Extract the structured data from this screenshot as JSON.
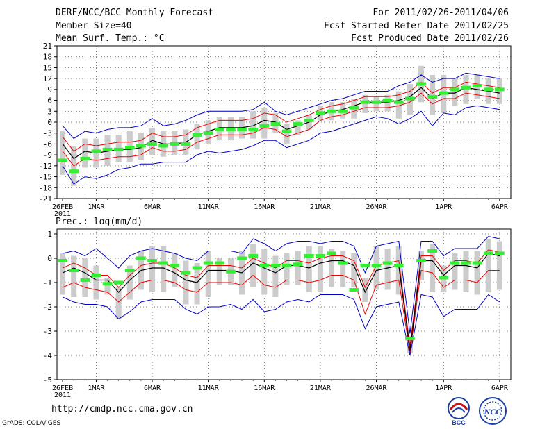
{
  "header": {
    "title": "DERF/NCC/BCC Monthly Forecast",
    "member_size": "Member Size=40",
    "variable_top": "Mean Surf. Temp.: °C",
    "period": "For 2011/02/26-2011/04/06",
    "started": "Fcst Started Refer Date 2011/02/25",
    "produced": "Fcst Produced Date 2011/02/26"
  },
  "footer": {
    "url": "http://cmdp.ncc.cma.gov.cn",
    "credit": "GrADS: COLA/IGES",
    "logo_left": "BCC",
    "logo_right": "NCC"
  },
  "colors": {
    "ensemble_bar": "#cccccc",
    "member_mark": "#33ee33",
    "mean_line": "#000000",
    "inner_line": "#ee0000",
    "outer_line": "#0000cc"
  },
  "chart_data": [
    {
      "type": "line",
      "title": "Mean Surf. Temp.: °C",
      "x_start": "26FEB 2011",
      "x": [
        1,
        2,
        3,
        4,
        5,
        6,
        7,
        8,
        9,
        10,
        11,
        12,
        13,
        14,
        15,
        16,
        17,
        18,
        19,
        20,
        21,
        22,
        23,
        24,
        25,
        26,
        27,
        28,
        29,
        30,
        31,
        32,
        33,
        34,
        35,
        36,
        37,
        38,
        39,
        40
      ],
      "x_tick_labels": [
        {
          "day": 1,
          "label": "26FEB",
          "sub": "2011"
        },
        {
          "day": 4,
          "label": "1MAR"
        },
        {
          "day": 9,
          "label": "6MAR"
        },
        {
          "day": 14,
          "label": "11MAR"
        },
        {
          "day": 19,
          "label": "16MAR"
        },
        {
          "day": 24,
          "label": "21MAR"
        },
        {
          "day": 29,
          "label": "26MAR"
        },
        {
          "day": 35,
          "label": "1APR"
        },
        {
          "day": 40,
          "label": "6APR"
        }
      ],
      "ylim": [
        -21,
        21
      ],
      "y_ticks": [
        -21,
        -18,
        -15,
        -12,
        -9,
        -6,
        -3,
        0,
        3,
        6,
        9,
        12,
        15,
        18,
        21
      ],
      "grid": true,
      "series": [
        {
          "name": "mean",
          "values": [
            -6,
            -10,
            -8,
            -8.5,
            -8,
            -7.5,
            -7.5,
            -7,
            -5,
            -6,
            -6,
            -5.5,
            -3.5,
            -2.5,
            -1.5,
            -1.5,
            -1.5,
            -1,
            0.5,
            0,
            -2,
            -1,
            0,
            2,
            3,
            3.5,
            4.5,
            5.5,
            5.5,
            5.5,
            6,
            7,
            9.5,
            6.5,
            8,
            8,
            9.5,
            9,
            8.5,
            8
          ]
        },
        {
          "name": "upper_red",
          "values": [
            -4,
            -8,
            -6,
            -6.5,
            -6,
            -5.5,
            -5.5,
            -5,
            -3,
            -4,
            -4,
            -3.5,
            -1.5,
            -0.5,
            0.5,
            0.5,
            0.5,
            1,
            2.5,
            2,
            0,
            1,
            2,
            3.5,
            4.5,
            5,
            6,
            7,
            7,
            7,
            7.5,
            8.5,
            11,
            8,
            9.5,
            9.5,
            11,
            10.5,
            10,
            9.5
          ]
        },
        {
          "name": "lower_red",
          "values": [
            -8,
            -12,
            -10,
            -10.5,
            -10,
            -9.5,
            -9.5,
            -9,
            -7,
            -8,
            -8,
            -7.5,
            -5.5,
            -4.5,
            -3.5,
            -3.5,
            -3.5,
            -3,
            -1.5,
            -2,
            -4,
            -3,
            -2,
            0.5,
            1.5,
            2,
            3,
            4,
            4,
            4,
            4.5,
            5.5,
            8,
            5,
            6.5,
            6.5,
            8,
            7.5,
            7,
            6.5
          ]
        },
        {
          "name": "upper_blue",
          "values": [
            -1,
            -4.5,
            -2.5,
            -3,
            -2,
            -1.5,
            -1.5,
            -1,
            1,
            -1,
            -0.5,
            0.5,
            2,
            3,
            3,
            3,
            3,
            3.5,
            5.5,
            3,
            2,
            3,
            4,
            5,
            6,
            6.5,
            7.5,
            8.5,
            8.5,
            8.5,
            10,
            11,
            13,
            11,
            12,
            12,
            13.5,
            13,
            12.5,
            12
          ]
        },
        {
          "name": "lower_blue",
          "values": [
            -12,
            -17,
            -15,
            -15.5,
            -14.5,
            -13,
            -12.5,
            -11.5,
            -11.5,
            -11,
            -11,
            -11,
            -9,
            -8,
            -8.5,
            -8,
            -7.5,
            -6.5,
            -5,
            -5,
            -7,
            -6,
            -5,
            -3,
            -2.5,
            -1.5,
            -0.5,
            0.5,
            1.5,
            1,
            -0.5,
            1,
            3,
            -1,
            2.5,
            2,
            4,
            4.5,
            4,
            3.5
          ]
        },
        {
          "name": "member",
          "values": [
            -10.5,
            -13.5,
            -10,
            -8,
            -7.5,
            -7.5,
            -7,
            -6.5,
            -6,
            -6.5,
            -6,
            -6,
            -3.5,
            -3,
            -2,
            -2,
            -2,
            -2,
            -1,
            -0.5,
            -2.5,
            -0.5,
            0.5,
            2.5,
            3,
            3,
            4,
            5.5,
            5.5,
            6,
            5.5,
            6.5,
            10.5,
            7,
            8,
            9,
            9.5,
            10,
            9,
            9
          ]
        },
        {
          "name": "bar_high",
          "values": [
            -2.5,
            -6.5,
            -4.5,
            -4.5,
            -3.5,
            -3.5,
            -2.5,
            -3,
            -1.5,
            -2.5,
            -2.5,
            -2,
            -0.5,
            0.5,
            1.5,
            1.5,
            1.5,
            3,
            4,
            2.5,
            -0.5,
            0.5,
            2,
            4.5,
            5.5,
            5.5,
            6.5,
            7.5,
            7,
            7.5,
            8.5,
            10.5,
            15.5,
            13,
            13,
            12,
            13,
            13,
            12,
            12
          ]
        },
        {
          "name": "bar_low",
          "values": [
            -14.5,
            -17.5,
            -12.5,
            -12.5,
            -12,
            -11,
            -11,
            -10.5,
            -9,
            -9.5,
            -9,
            -9,
            -7.5,
            -6,
            -5,
            -5,
            -4.5,
            -4.5,
            -4.5,
            -3,
            -6,
            -3.5,
            -2,
            0.5,
            0.5,
            1,
            1,
            2.5,
            3,
            3,
            1,
            2,
            5.5,
            2,
            2.5,
            4.5,
            5,
            6.5,
            5,
            5
          ]
        }
      ]
    },
    {
      "type": "line",
      "title": "Prec.: log(mm/d)",
      "x_start": "26FEB 2011",
      "x": [
        1,
        2,
        3,
        4,
        5,
        6,
        7,
        8,
        9,
        10,
        11,
        12,
        13,
        14,
        15,
        16,
        17,
        18,
        19,
        20,
        21,
        22,
        23,
        24,
        25,
        26,
        27,
        28,
        29,
        30,
        31,
        32,
        33,
        34,
        35,
        36,
        37,
        38,
        39,
        40
      ],
      "x_tick_labels": [
        {
          "day": 1,
          "label": "26FEB",
          "sub": "2011"
        },
        {
          "day": 4,
          "label": "1MAR"
        },
        {
          "day": 9,
          "label": "6MAR"
        },
        {
          "day": 14,
          "label": "11MAR"
        },
        {
          "day": 19,
          "label": "16MAR"
        },
        {
          "day": 24,
          "label": "21MAR"
        },
        {
          "day": 29,
          "label": "26MAR"
        },
        {
          "day": 35,
          "label": "1APR"
        },
        {
          "day": 40,
          "label": "6APR"
        }
      ],
      "ylim": [
        -5,
        1.2
      ],
      "y_ticks": [
        -5,
        -4,
        -3,
        -2,
        -1,
        0,
        1
      ],
      "grid": true,
      "series": [
        {
          "name": "mean",
          "values": [
            -0.6,
            -0.4,
            -0.6,
            -0.9,
            -0.9,
            -1.4,
            -0.9,
            -0.5,
            -0.4,
            -0.4,
            -0.6,
            -0.9,
            -1,
            -0.5,
            -0.5,
            -0.5,
            -0.6,
            -0.2,
            -0.4,
            -0.6,
            -0.3,
            -0.3,
            -0.4,
            -0.2,
            -0.1,
            -0.1,
            -0.3,
            -1.4,
            -0.5,
            -0.4,
            -0.3,
            -3.8,
            -0.1,
            -0.1,
            -0.7,
            -0.3,
            -0.3,
            -0.4,
            0.2,
            0.1
          ]
        },
        {
          "name": "upper_red",
          "values": [
            -0.4,
            -0.2,
            -0.4,
            -0.7,
            -0.7,
            -1.2,
            -0.7,
            -0.3,
            -0.2,
            -0.2,
            -0.4,
            -0.7,
            -0.8,
            -0.3,
            -0.3,
            -0.3,
            -0.4,
            0,
            -0.2,
            -0.4,
            -0.1,
            -0.1,
            -0.2,
            0,
            0.1,
            0.1,
            -0.1,
            -1.2,
            -0.3,
            -0.2,
            -0.1,
            -3.6,
            0.1,
            0.1,
            -0.5,
            -0.1,
            -0.1,
            -0.2,
            0.35,
            0.25
          ]
        },
        {
          "name": "lower_red",
          "values": [
            -1.2,
            -1,
            -1.2,
            -1.3,
            -1.4,
            -1.8,
            -1.4,
            -1,
            -0.9,
            -0.9,
            -1,
            -1.3,
            -1.4,
            -1,
            -1,
            -1,
            -1.1,
            -0.7,
            -1.1,
            -1.2,
            -0.9,
            -0.9,
            -1,
            -0.9,
            -0.7,
            -0.7,
            -0.9,
            -2.3,
            -1.1,
            -1,
            -0.9,
            -3.9,
            -0.5,
            -0.6,
            -1.2,
            -0.9,
            -0.9,
            -1,
            -0.5,
            -0.5
          ]
        },
        {
          "name": "upper_blue",
          "values": [
            0.2,
            0.3,
            0.1,
            0.4,
            0,
            -0.4,
            0.1,
            0.3,
            0.4,
            0.3,
            0.2,
            0,
            -0.1,
            0.3,
            0.3,
            0.3,
            0.2,
            0.8,
            0.6,
            0.3,
            0.6,
            0.7,
            0.7,
            0.6,
            0.7,
            0.7,
            0.5,
            -0.6,
            0.5,
            0.6,
            0.7,
            -3.1,
            0.7,
            0.7,
            0.1,
            0.4,
            0.4,
            0.4,
            0.9,
            0.8
          ]
        },
        {
          "name": "lower_blue",
          "values": [
            -1.6,
            -1.8,
            -1.9,
            -1.9,
            -2,
            -2.5,
            -2.2,
            -1.8,
            -1.7,
            -1.7,
            -1.7,
            -2.1,
            -2.3,
            -2,
            -2,
            -1.9,
            -2.1,
            -1.7,
            -2.2,
            -2.1,
            -1.8,
            -1.7,
            -1.8,
            -1.5,
            -1.5,
            -1.5,
            -1.7,
            -2.9,
            -2,
            -1.9,
            -1.8,
            -4,
            -1.5,
            -1.6,
            -2.4,
            -2.1,
            -2.1,
            -2.1,
            -1.5,
            -1.8
          ]
        },
        {
          "name": "member",
          "values": [
            -0.1,
            -0.5,
            -0.9,
            -0.7,
            -1.05,
            -1,
            -0.5,
            0,
            -0.1,
            -0.2,
            -0.3,
            -0.6,
            -0.4,
            -0.2,
            -0.2,
            -0.55,
            0,
            0.1,
            -0.3,
            -0.3,
            -0.3,
            -0.25,
            0.1,
            0.1,
            0.2,
            -0.2,
            -1.3,
            -0.3,
            -0.3,
            -0.2,
            -0.3,
            -3.3,
            -0.1,
            0.3,
            -0.8,
            -0.2,
            -0.2,
            -0.2,
            0.2,
            0.2
          ]
        },
        {
          "name": "bar_high",
          "values": [
            0.2,
            0.1,
            0,
            -0.3,
            -0.8,
            -1.2,
            -0.3,
            0.3,
            0.5,
            0.5,
            0.2,
            -0.1,
            -0.2,
            0.3,
            0,
            0,
            0.3,
            0.6,
            0.4,
            0.1,
            0.2,
            0.3,
            0.5,
            0.5,
            0.4,
            0.3,
            0.2,
            -0.8,
            0.5,
            0.4,
            0.5,
            -3.2,
            0.3,
            0.6,
            -0.3,
            0.2,
            0.3,
            0.3,
            0.8,
            0.7
          ]
        },
        {
          "name": "bar_low",
          "values": [
            -1.5,
            -1.6,
            -1.6,
            -1.7,
            -1.5,
            -2.5,
            -1.7,
            -1.3,
            -1.4,
            -1.4,
            -1.2,
            -1.9,
            -1.9,
            -1.6,
            -1.1,
            -1.1,
            -1.5,
            -1.2,
            -1.5,
            -1.6,
            -1.1,
            -1.1,
            -1.4,
            -1.4,
            -1.2,
            -1.2,
            -1.2,
            -1.8,
            -1.3,
            -1.3,
            -1.5,
            -3.9,
            -0.9,
            -1.4,
            -1.4,
            -1.3,
            -1.4,
            -1.5,
            -1.4,
            -1.3
          ]
        }
      ]
    }
  ]
}
